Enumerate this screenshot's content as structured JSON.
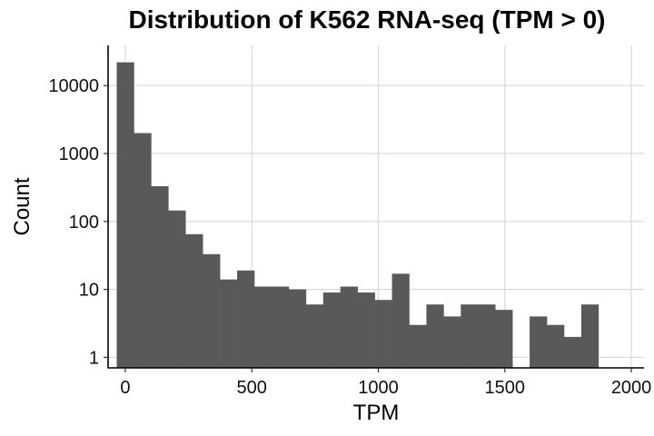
{
  "chart_data": {
    "type": "bar",
    "title": "Distribution of K562 RNA-seq (TPM > 0)",
    "xlabel": "TPM",
    "ylabel": "Count",
    "y_scale": "log10",
    "xlim": [
      -68,
      2050
    ],
    "ylim": [
      0.7,
      39000
    ],
    "x_ticks": [
      0,
      500,
      1000,
      1500,
      2000
    ],
    "x_tick_labels": [
      "0",
      "500",
      "1000",
      "1500",
      "2000"
    ],
    "y_ticks": [
      1,
      10,
      100,
      1000,
      10000
    ],
    "y_tick_labels": [
      "1",
      "10",
      "100",
      "1000",
      "10000"
    ],
    "bin_width": 68,
    "bin_centers": [
      0,
      68,
      136,
      204,
      272,
      340,
      408,
      476,
      544,
      612,
      680,
      748,
      816,
      884,
      952,
      1020,
      1088,
      1156,
      1224,
      1292,
      1360,
      1428,
      1496,
      1564,
      1632,
      1700,
      1768,
      1836
    ],
    "counts": [
      22000,
      2000,
      330,
      145,
      65,
      33,
      14,
      19,
      11,
      11,
      10,
      6,
      9,
      11,
      9,
      7,
      17,
      3,
      6,
      4,
      6,
      6,
      5,
      0,
      4,
      3,
      2,
      6
    ],
    "grid": true,
    "bar_color": "#595959",
    "grid_color": "#d9d9d9"
  }
}
